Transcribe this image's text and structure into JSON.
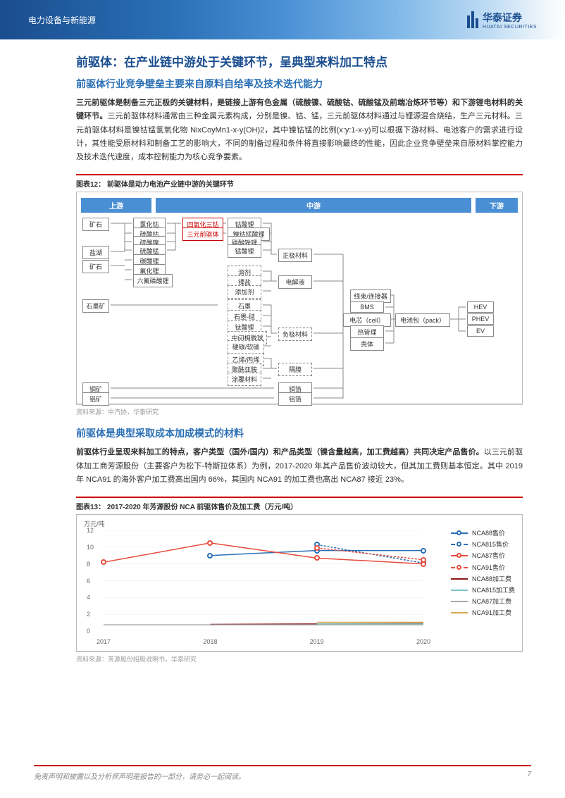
{
  "header": {
    "category": "电力设备与新能源",
    "company": "华泰证券",
    "company_en": "HUATAI SECURITIES"
  },
  "h1": "前驱体：在产业链中游处于关键环节，呈典型来料加工特点",
  "section1": {
    "h2": "前驱体行业竞争壁垒主要来自原料自给率及技术迭代能力",
    "p1_bold": "三元前驱体是制备三元正极的关键材料，是链接上游有色金属（硫酸镍、硫酸钴、硫酸锰及前端冶炼环节等）和下游锂电材料的关键环节。",
    "p1_rest": "三元前驱体材料通常由三种金属元素构成，分别是镍、钴、锰，三元前驱体材料通过与锂源混合烧结，生产三元材料。三元前驱体材料是镍钴锰氢氧化物 NixCoyMn1-x-y(OH)2，其中镍钴锰的比例(x:y:1-x-y)可以根据下游材料、电池客户的需求进行设计，其性能受原材料和制备工艺的影响大，不同的制备过程和条件将直接影响最终的性能，因此企业竞争壁垒来自原材料掌控能力及技术迭代速度，成本控制能力为核心竞争要素。"
  },
  "figure12": {
    "title": "图表12：  前驱体是动力电池产业链中游的关键环节",
    "source": "资料来源：中汽协，华泰研究",
    "headers": {
      "upstream": "上游",
      "midstream": "中游",
      "downstream": "下游"
    },
    "nodes": {
      "n1": "矿石",
      "n2": "盐湖",
      "n3": "矿石",
      "n4": "石墨矿",
      "n5": "铜矿",
      "n6": "铝矿",
      "n7": "氯化钴",
      "n8": "硫酸钴",
      "n9": "硫酸镍",
      "n10": "硫酸锰",
      "n11": "碳酸锂",
      "n12": "氟化锂",
      "n13": "六氟磷酸锂",
      "n14": "四氧化三钴",
      "n15": "三元前驱体",
      "n16": "钴酸锂",
      "n17": "镍钴锰酸锂",
      "n18": "磷酸铁锂",
      "n19": "锰酸锂",
      "n20": "溶剂",
      "n21": "锂盐",
      "n22": "添加剂",
      "n23": "石墨",
      "n24": "石墨-硅",
      "n25": "钛酸锂",
      "n26": "中间相微球",
      "n27": "硬碳/软碳",
      "n28": "乙烯/丙烯",
      "n29": "聚酰亚胺",
      "n30": "涂覆材料",
      "n31": "正极材料",
      "n32": "电解液",
      "n33": "负极材料",
      "n34": "隔膜",
      "n35": "铜箔",
      "n36": "铝箔",
      "n37": "线束/连接器",
      "n38": "BMS",
      "n39": "电芯（cell）",
      "n40": "热管理",
      "n41": "壳体",
      "n42": "电池包（pack）",
      "n43": "HEV",
      "n44": "PHEV",
      "n45": "EV"
    }
  },
  "section2": {
    "h2": "前驱体是典型采取成本加成模式的材料",
    "p1_bold": "前驱体行业呈现来料加工的特点，客户类型（国外/国内）和产品类型（镍含量越高，加工费越高）共同决定产品售价。",
    "p1_rest": "以三元前驱体加工商芳源股份（主要客户为松下-特斯拉体系）为例，2017-2020 年其产品售价波动较大，但其加工费则基本恒定。其中 2019 年 NCA91 的海外客户加工费高出国内 66%，其国内 NCA91 的加工费也高出 NCA87 接近 23%。"
  },
  "figure13": {
    "title": "图表13：  2017-2020 年芳源股份 NCA 前驱体售价及加工费（万元/吨）",
    "source": "资料来源：芳源股份招股说明书，华泰研究",
    "ylabel": "万元/吨",
    "ylim": [
      0,
      12
    ],
    "yticks": [
      0,
      2,
      4,
      6,
      8,
      10,
      12
    ],
    "xlabels": [
      "2017",
      "2018",
      "2019",
      "2020"
    ],
    "colors": {
      "nca88_price": "#2a6fb5",
      "nca815_price": "#2a6fb5",
      "nca87_price": "#e74c3c",
      "nca91_price": "#e74c3c",
      "nca88_fee": "#8b1a1a",
      "nca815_fee": "#7fc4c9",
      "nca87_fee": "#aaaaaa",
      "nca91_fee": "#d4a84a"
    },
    "series": {
      "nca88_price": {
        "label": "NCA88售价",
        "data": [
          null,
          9.0,
          9.6,
          9.6
        ],
        "dash": false,
        "marker": true
      },
      "nca815_price": {
        "label": "NCA815售价",
        "data": [
          null,
          null,
          10.3,
          8.1
        ],
        "dash": true,
        "marker": true
      },
      "nca87_price": {
        "label": "NCA87售价",
        "data": [
          8.2,
          10.5,
          8.7,
          8.0
        ],
        "dash": false,
        "marker": true
      },
      "nca91_price": {
        "label": "NCA91售价",
        "data": [
          null,
          null,
          9.9,
          8.5
        ],
        "dash": true,
        "marker": true
      },
      "nca88_fee": {
        "label": "NCA88加工费",
        "data": [
          null,
          0.8,
          0.85,
          0.9
        ],
        "dash": false,
        "marker": false
      },
      "nca815_fee": {
        "label": "NCA815加工费",
        "data": [
          null,
          null,
          0.85,
          0.85
        ],
        "dash": false,
        "marker": false
      },
      "nca87_fee": {
        "label": "NCA87加工费",
        "data": [
          0.75,
          0.75,
          0.75,
          0.75
        ],
        "dash": false,
        "marker": false
      },
      "nca91_fee": {
        "label": "NCA91加工费",
        "data": [
          null,
          null,
          1.05,
          1.05
        ],
        "dash": false,
        "marker": false
      }
    }
  },
  "footer": {
    "disclaimer": "免责声明和披露以及分析师声明是报告的一部分，请务必一起阅读。",
    "page": "7"
  }
}
